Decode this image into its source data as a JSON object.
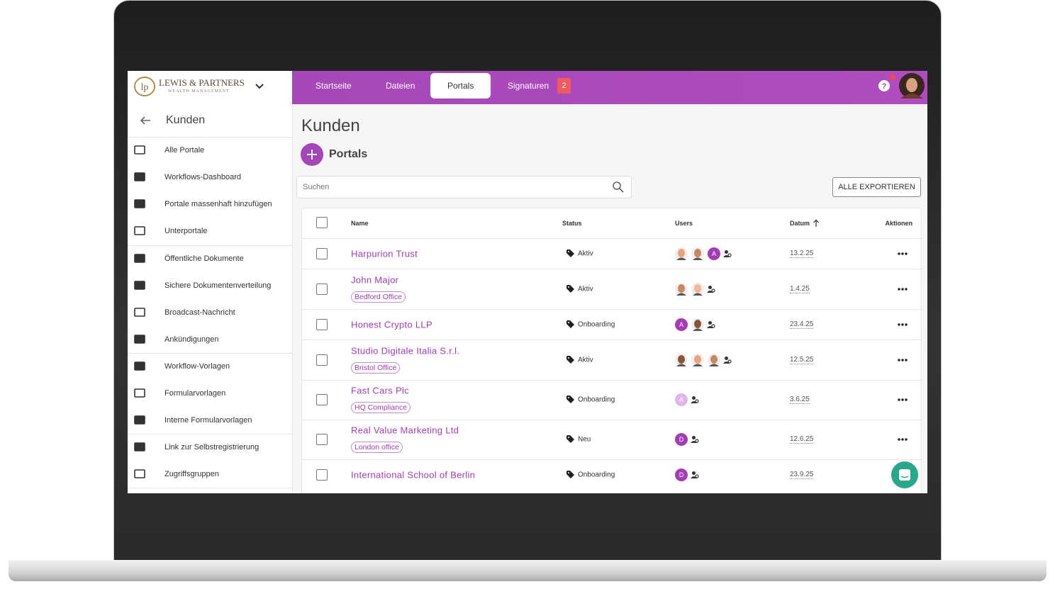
{
  "header": {
    "logo": {
      "name": "LEWIS & PARTNERS",
      "tagline": "WEALTH MANAGEMENT"
    },
    "nav": [
      "Startseite",
      "Dateien",
      "Portals",
      "Signaturen"
    ],
    "signatures_badge": 2
  },
  "sidebar": {
    "title": "Kunden",
    "items": [
      "Alle Portale",
      "Workflows-Dashboard",
      "Portale massenhaft hinzufügen",
      "Unterportale",
      "Öffentliche Dokumente",
      "Sichere Dokumentenverteilung",
      "Broadcast-Nachricht",
      "Ankündigungen",
      "Workflow-Vorlagen",
      "Formularvorlagen",
      "Interne Formularvorlagen",
      "Link zur Selbstregistrierung",
      "Zugriffsgruppen"
    ]
  },
  "main": {
    "title": "Kunden",
    "section": "Portals",
    "search_placeholder": "Suchen",
    "export_button": "ALLE EXPORTIEREN",
    "table": {
      "columns": [
        "Name",
        "Status",
        "Users",
        "Datum",
        "Aktionen"
      ],
      "rows": [
        {
          "name": "Harpurion Trust",
          "status": "Aktiv",
          "users": [
            "A"
          ],
          "date": "13.2.25"
        },
        {
          "name": "John Major",
          "tag": "Bedford Office",
          "status": "Aktiv",
          "date": "1.4.25"
        },
        {
          "name": "Honest Crypto LLP",
          "status": "Onboarding",
          "users": [
            "A"
          ],
          "date": "23.4.25"
        },
        {
          "name": "Studio Digitale Italia S.r.l.",
          "tag": "Bristol Office",
          "status": "Aktiv",
          "date": "12.5.25"
        },
        {
          "name": "Fast Cars Plc",
          "tag": "HQ Compliance",
          "status": "Onboarding",
          "users": [
            "A"
          ],
          "date": "3.6.25"
        },
        {
          "name": "Real Value Marketing Ltd",
          "tag": "London office",
          "status": "Neu",
          "users": [
            "D"
          ],
          "date": "12.6.25"
        },
        {
          "name": "International School of Berlin",
          "status": "Onboarding",
          "users": [
            "D"
          ],
          "date": "23.9.25"
        }
      ]
    }
  }
}
